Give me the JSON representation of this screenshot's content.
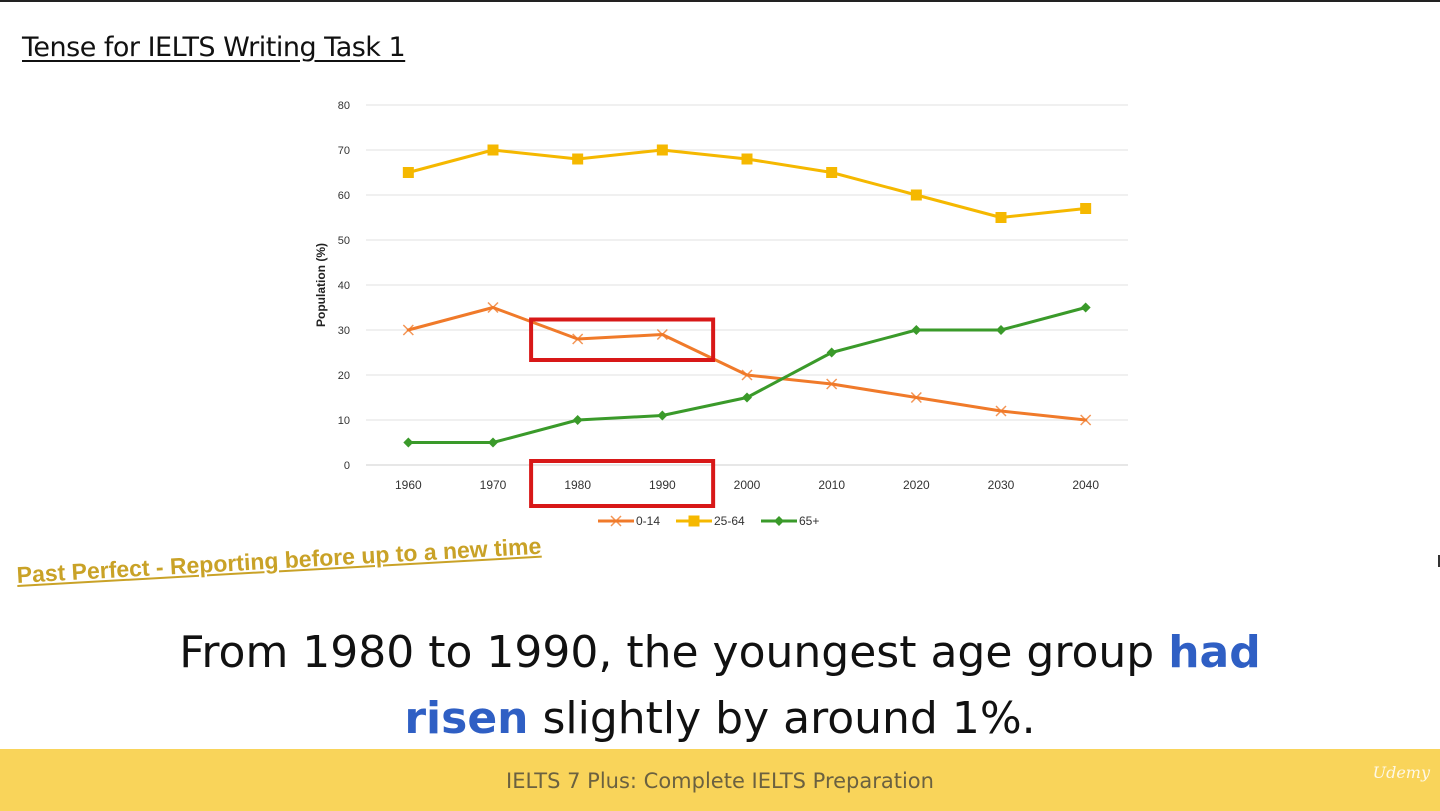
{
  "slide": {
    "title": "Tense for IELTS Writing Task 1",
    "subtitle": "Past Perfect - Reporting before up to a new time",
    "sentence": {
      "part1": "From 1980 to 1990, the youngest age group ",
      "emph1": "had",
      "emph2": "risen",
      "part2": " slightly by around 1%."
    },
    "footer": "IELTS 7 Plus: Complete IELTS Preparation",
    "watermark": "Udemy",
    "colors": {
      "series_0_14": "#f07a2a",
      "series_25_64": "#f5b800",
      "series_65": "#3a9a2a",
      "highlight_box": "#d81818",
      "subtitle": "#c9a227",
      "emphasis": "#2f5fc4",
      "footer_bg": "#f9d45a"
    }
  },
  "chart_data": {
    "type": "line",
    "title": "",
    "xlabel": "",
    "ylabel": "Population (%)",
    "ylim": [
      0,
      80
    ],
    "yticks": [
      0,
      10,
      20,
      30,
      40,
      50,
      60,
      70,
      80
    ],
    "grid": true,
    "legend_position": "bottom",
    "categories": [
      "1960",
      "1970",
      "1980",
      "1990",
      "2000",
      "2010",
      "2020",
      "2030",
      "2040"
    ],
    "series": [
      {
        "name": "0-14",
        "marker": "x",
        "color": "#f07a2a",
        "values": [
          30,
          35,
          28,
          29,
          20,
          18,
          15,
          12,
          10
        ]
      },
      {
        "name": "25-64",
        "marker": "square",
        "color": "#f5b800",
        "values": [
          65,
          70,
          68,
          70,
          68,
          65,
          60,
          55,
          57
        ]
      },
      {
        "name": "65+",
        "marker": "diamond",
        "color": "#3a9a2a",
        "values": [
          5,
          5,
          10,
          11,
          15,
          25,
          30,
          30,
          35
        ]
      }
    ],
    "highlights": [
      {
        "target": "series",
        "series": "0-14",
        "x_from": "1980",
        "x_to": "1990"
      },
      {
        "target": "x-axis-labels",
        "x_from": "1980",
        "x_to": "1990"
      }
    ]
  }
}
